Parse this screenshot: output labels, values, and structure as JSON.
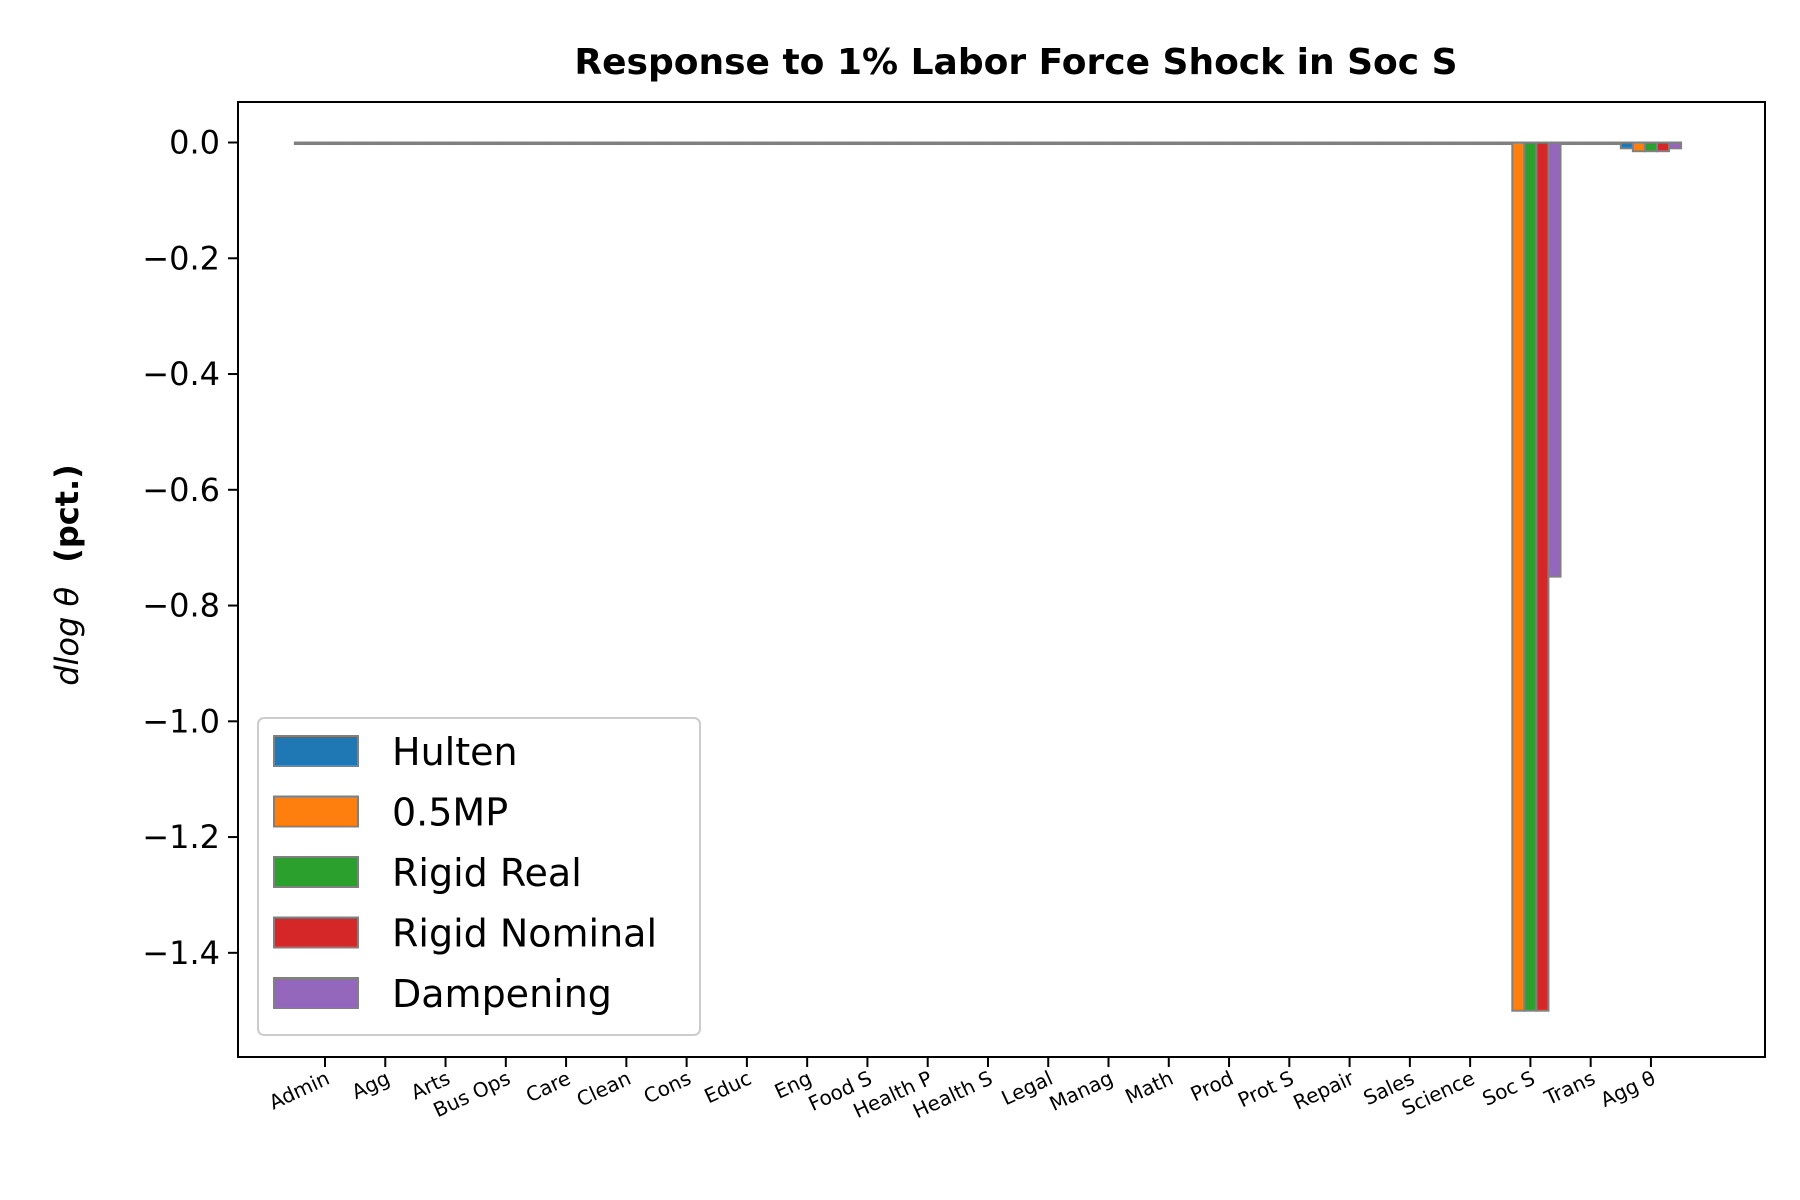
{
  "chart_data": {
    "type": "bar",
    "title": "Response to 1% Labor Force Shock in Soc S",
    "ylabel_math": "dlog θ",
    "ylabel_text": "(pct.)",
    "xlabel": "",
    "ylim": [
      -1.58,
      0.07
    ],
    "yticks": [
      0.0,
      -0.2,
      -0.4,
      -0.6,
      -0.8,
      -1.0,
      -1.2,
      -1.4
    ],
    "ytick_labels": [
      "0.0",
      "−0.2",
      "−0.4",
      "−0.6",
      "−0.8",
      "−1.0",
      "−1.2",
      "−1.4"
    ],
    "categories": [
      "Admin",
      "Agg",
      "Arts",
      "Bus Ops",
      "Care",
      "Clean",
      "Cons",
      "Educ",
      "Eng",
      "Food S",
      "Health P",
      "Health S",
      "Legal",
      "Manag",
      "Math",
      "Prod",
      "Prot S",
      "Repair",
      "Sales",
      "Science",
      "Soc S",
      "Trans",
      "Agg θ"
    ],
    "series": [
      {
        "name": "Hulten",
        "color": "#1f77b4",
        "values": [
          0,
          0,
          0,
          0,
          0,
          0,
          0,
          0,
          0,
          0,
          0,
          0,
          0,
          0,
          0,
          0,
          0,
          0,
          0,
          0,
          0,
          0,
          -0.01
        ]
      },
      {
        "name": "0.5MP",
        "color": "#ff7f0e",
        "values": [
          0,
          0,
          0,
          0,
          0,
          0,
          0,
          0,
          0,
          0,
          0,
          0,
          0,
          0,
          0,
          0,
          0,
          0,
          0,
          0,
          -1.5,
          0,
          -0.015
        ]
      },
      {
        "name": "Rigid Real",
        "color": "#2ca02c",
        "values": [
          0,
          0,
          0,
          0,
          0,
          0,
          0,
          0,
          0,
          0,
          0,
          0,
          0,
          0,
          0,
          0,
          0,
          0,
          0,
          0,
          -1.5,
          0,
          -0.015
        ]
      },
      {
        "name": "Rigid Nominal",
        "color": "#d62728",
        "values": [
          0,
          0,
          0,
          0,
          0,
          0,
          0,
          0,
          0,
          0,
          0,
          0,
          0,
          0,
          0,
          0,
          0,
          0,
          0,
          0,
          -1.5,
          0,
          -0.015
        ]
      },
      {
        "name": "Dampening",
        "color": "#9467bd",
        "values": [
          0,
          0,
          0,
          0,
          0,
          0,
          0,
          0,
          0,
          0,
          0,
          0,
          0,
          0,
          0,
          0,
          0,
          0,
          0,
          0,
          -0.75,
          0,
          -0.01
        ]
      }
    ],
    "legend_position": "lower-left",
    "grid": false,
    "bar_edge_color": "#808080"
  }
}
